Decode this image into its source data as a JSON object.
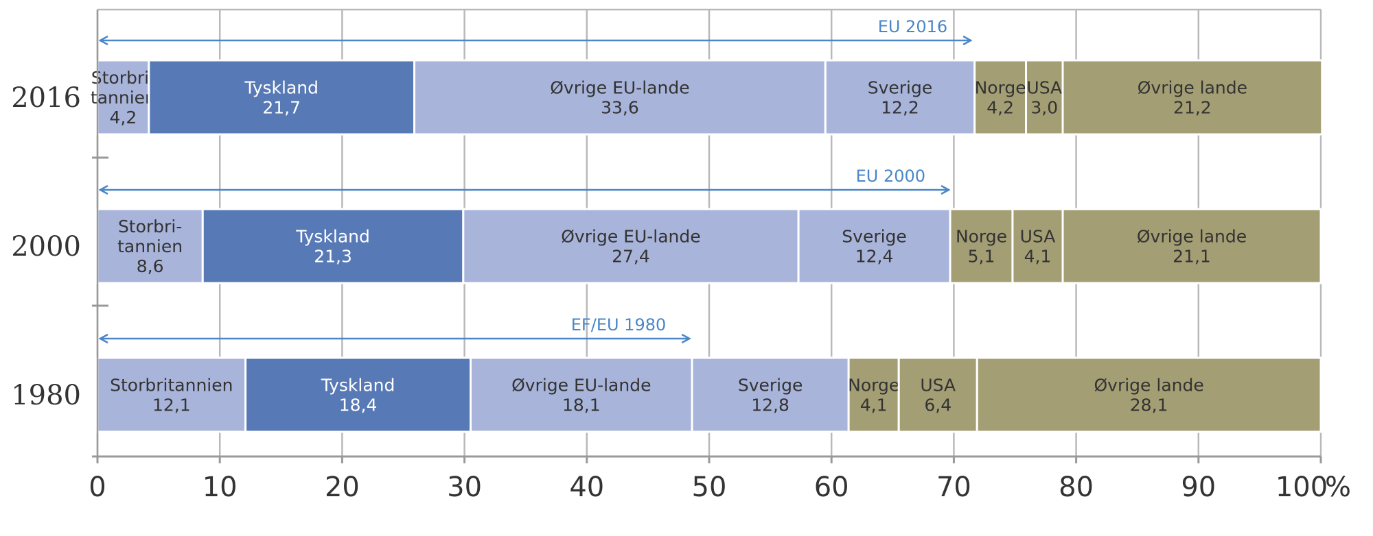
{
  "chart_data": {
    "type": "bar",
    "orientation": "horizontal",
    "stacked": true,
    "unit_label": "%",
    "x_range": [
      0,
      100
    ],
    "x_ticks": [
      0,
      10,
      20,
      30,
      40,
      50,
      60,
      70,
      80,
      90,
      100
    ],
    "x_tick_labels": [
      "0",
      "10",
      "20",
      "30",
      "40",
      "50",
      "60",
      "70",
      "80",
      "90",
      "100"
    ],
    "grid": true,
    "colors": {
      "light": "#a8b4da",
      "dark": "#5779b6",
      "olive": "#a49e74",
      "gridline": "#b9b9b9",
      "arrow": "#4a86c8"
    },
    "rows": [
      {
        "year": "2016",
        "arrow_label": "EU 2016",
        "arrow_end": 71.5,
        "segments": [
          {
            "lines": [
              "Storbri-",
              "tannien"
            ],
            "value_label": "4,2",
            "value": 4.2,
            "color": "light"
          },
          {
            "lines": [
              "Tyskland"
            ],
            "value_label": "21,7",
            "value": 21.7,
            "color": "dark"
          },
          {
            "lines": [
              "Øvrige EU-lande"
            ],
            "value_label": "33,6",
            "value": 33.6,
            "color": "light"
          },
          {
            "lines": [
              "Sverige"
            ],
            "value_label": "12,2",
            "value": 12.2,
            "color": "light"
          },
          {
            "lines": [
              "Norge"
            ],
            "value_label": "4,2",
            "value": 4.2,
            "color": "olive"
          },
          {
            "lines": [
              "USA"
            ],
            "value_label": "3,0",
            "value": 3.0,
            "color": "olive"
          },
          {
            "lines": [
              "Øvrige lande"
            ],
            "value_label": "21,2",
            "value": 21.2,
            "color": "olive"
          }
        ]
      },
      {
        "year": "2000",
        "arrow_label": "EU 2000",
        "arrow_end": 69.7,
        "segments": [
          {
            "lines": [
              "Storbri-",
              "tannien"
            ],
            "value_label": "8,6",
            "value": 8.6,
            "color": "light"
          },
          {
            "lines": [
              "Tyskland"
            ],
            "value_label": "21,3",
            "value": 21.3,
            "color": "dark"
          },
          {
            "lines": [
              "Øvrige EU-lande"
            ],
            "value_label": "27,4",
            "value": 27.4,
            "color": "light"
          },
          {
            "lines": [
              "Sverige"
            ],
            "value_label": "12,4",
            "value": 12.4,
            "color": "light"
          },
          {
            "lines": [
              "Norge"
            ],
            "value_label": "5,1",
            "value": 5.1,
            "color": "olive"
          },
          {
            "lines": [
              "USA"
            ],
            "value_label": "4,1",
            "value": 4.1,
            "color": "olive"
          },
          {
            "lines": [
              "Øvrige lande"
            ],
            "value_label": "21,1",
            "value": 21.1,
            "color": "olive"
          }
        ]
      },
      {
        "year": "1980",
        "arrow_label": "EF/EU 1980",
        "arrow_end": 48.5,
        "segments": [
          {
            "lines": [
              "Storbritannien"
            ],
            "value_label": "12,1",
            "value": 12.1,
            "color": "light"
          },
          {
            "lines": [
              "Tyskland"
            ],
            "value_label": "18,4",
            "value": 18.4,
            "color": "dark"
          },
          {
            "lines": [
              "Øvrige EU-lande"
            ],
            "value_label": "18,1",
            "value": 18.1,
            "color": "light"
          },
          {
            "lines": [
              "Sverige"
            ],
            "value_label": "12,8",
            "value": 12.8,
            "color": "light"
          },
          {
            "lines": [
              "Norge"
            ],
            "value_label": "4,1",
            "value": 4.1,
            "color": "olive"
          },
          {
            "lines": [
              "USA"
            ],
            "value_label": "6,4",
            "value": 6.4,
            "color": "olive"
          },
          {
            "lines": [
              "Øvrige lande"
            ],
            "value_label": "28,1",
            "value": 28.1,
            "color": "olive"
          }
        ]
      }
    ]
  }
}
